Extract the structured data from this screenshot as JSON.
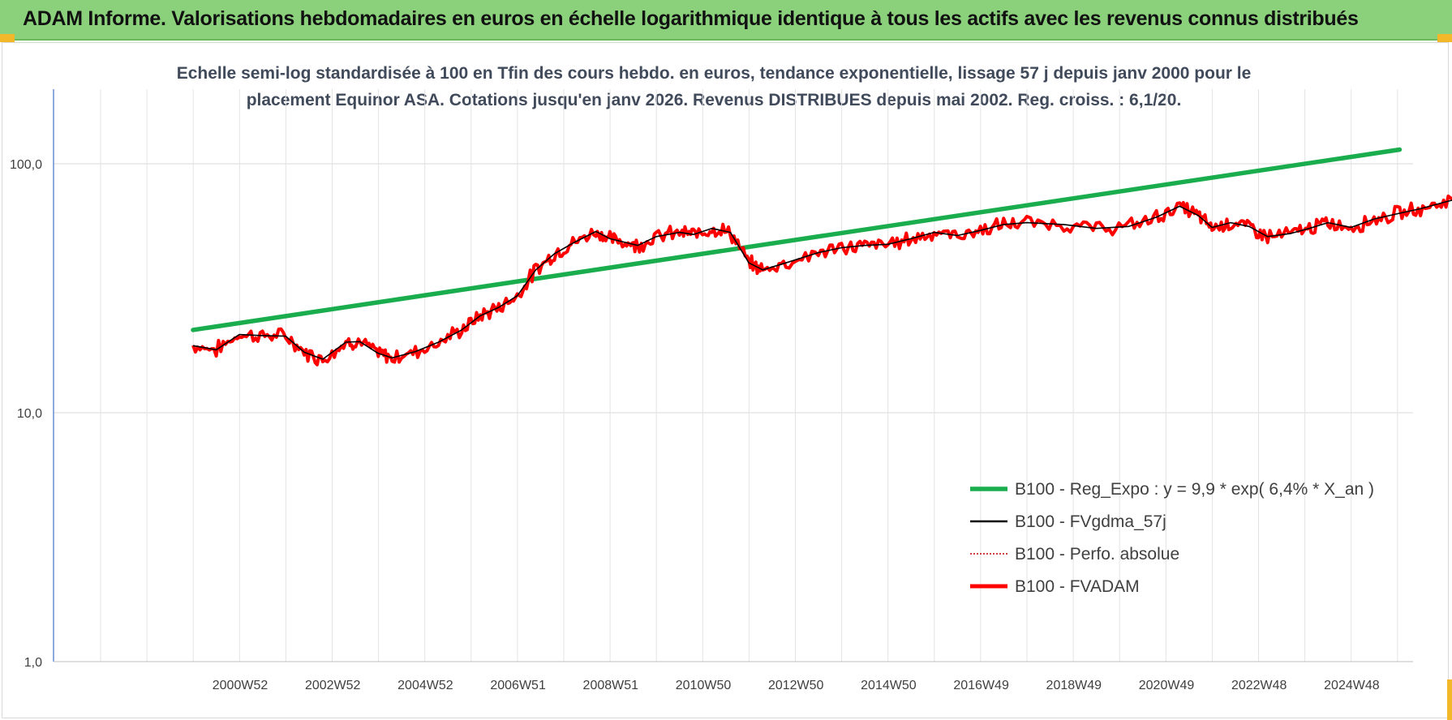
{
  "banner": {
    "title": "ADAM Informe. Valorisations hebdomadaires en euros en échelle logarithmique identique à tous les actifs avec les revenus connus distribués"
  },
  "colors": {
    "banner_bg": "#8bd17c",
    "reg_expo": "#1aad4e",
    "fvgdma": "#000000",
    "perfo": "#c00000",
    "fvadam": "#ff0000"
  },
  "chart_data": {
    "type": "line",
    "title_lines": [
      "Echelle semi-log standardisée à 100 en Tfin des cours hebdo. en euros, tendance exponentielle, lissage 57 j depuis janv 2000 pour le",
      "placement Equinor ASA. Cotations jusqu'en janv 2026. Revenus DISTRIBUES depuis mai 2002. Reg. croiss. : 6,1/20."
    ],
    "y_scale": "log",
    "ylim": [
      1,
      200
    ],
    "y_ticks": [
      {
        "value": 1,
        "label": "1,0"
      },
      {
        "value": 10,
        "label": "10,0"
      },
      {
        "value": 100,
        "label": "100,0"
      }
    ],
    "x_ticks": [
      "2000W52",
      "2002W52",
      "2004W52",
      "2006W51",
      "2008W51",
      "2010W50",
      "2012W50",
      "2014W50",
      "2016W49",
      "2018W49",
      "2020W49",
      "2022W48",
      "2024W48"
    ],
    "legend_position": "bottom-right",
    "grid": true,
    "series": [
      {
        "name": "B100 - Reg_Expo : y = 9,9 * exp( 6,4% *  X_an )",
        "style": "solid-thick",
        "points": [
          [
            2000.0,
            21.5
          ],
          [
            2026.05,
            114
          ]
        ]
      },
      {
        "name": "B100 - FVgdma_57j",
        "style": "solid-thin",
        "points": [
          [
            2000.0,
            18.6
          ],
          [
            2000.5,
            17.9
          ],
          [
            2001.0,
            20.6
          ],
          [
            2001.5,
            20.4
          ],
          [
            2002.0,
            20.3
          ],
          [
            2002.4,
            17.5
          ],
          [
            2002.8,
            16.4
          ],
          [
            2003.3,
            19.2
          ],
          [
            2003.6,
            19.3
          ],
          [
            2004.0,
            17.3
          ],
          [
            2004.3,
            16.6
          ],
          [
            2004.8,
            17.6
          ],
          [
            2005.3,
            19.2
          ],
          [
            2005.8,
            21.5
          ],
          [
            2006.2,
            24.5
          ],
          [
            2006.6,
            26.5
          ],
          [
            2007.0,
            29.5
          ],
          [
            2007.4,
            37.5
          ],
          [
            2007.8,
            43.5
          ],
          [
            2008.2,
            48.0
          ],
          [
            2008.7,
            53.5
          ],
          [
            2009.0,
            50.0
          ],
          [
            2009.3,
            48.5
          ],
          [
            2009.6,
            47.0
          ],
          [
            2010.0,
            51.0
          ],
          [
            2010.5,
            53.0
          ],
          [
            2010.8,
            52.0
          ],
          [
            2011.2,
            55.0
          ],
          [
            2011.6,
            53.0
          ],
          [
            2012.0,
            40.0
          ],
          [
            2012.3,
            37.5
          ],
          [
            2012.8,
            40.0
          ],
          [
            2013.5,
            44.0
          ],
          [
            2014.0,
            46.0
          ],
          [
            2014.5,
            47.0
          ],
          [
            2015.0,
            47.5
          ],
          [
            2015.5,
            50.0
          ],
          [
            2016.0,
            53.0
          ],
          [
            2016.5,
            51.5
          ],
          [
            2017.0,
            54.0
          ],
          [
            2017.5,
            57.0
          ],
          [
            2018.0,
            58.0
          ],
          [
            2018.8,
            57.0
          ],
          [
            2019.5,
            55.0
          ],
          [
            2020.2,
            56.0
          ],
          [
            2020.8,
            61.0
          ],
          [
            2021.3,
            67.5
          ],
          [
            2021.7,
            62.0
          ],
          [
            2022.0,
            55.5
          ],
          [
            2022.4,
            58.0
          ],
          [
            2022.8,
            56.0
          ],
          [
            2023.2,
            51.0
          ],
          [
            2023.7,
            52.5
          ],
          [
            2024.1,
            55.0
          ],
          [
            2024.5,
            58.0
          ],
          [
            2025.0,
            55.5
          ],
          [
            2025.5,
            60.0
          ],
          [
            2026.0,
            63.0
          ],
          [
            2026.5,
            66.0
          ],
          [
            2027.0,
            70.0
          ],
          [
            2027.5,
            74.0
          ],
          [
            2028.0,
            76.0
          ],
          [
            2028.4,
            72.0
          ],
          [
            2028.8,
            70.0
          ],
          [
            2029.2,
            68.0
          ],
          [
            2029.6,
            65.5
          ],
          [
            2030.0,
            66.0
          ],
          [
            2030.3,
            58.0
          ],
          [
            2030.7,
            58.0
          ],
          [
            2031.2,
            60.0
          ],
          [
            2031.6,
            66.0
          ],
          [
            2032.0,
            72.0
          ],
          [
            2032.4,
            85.0
          ],
          [
            2032.8,
            102.0
          ],
          [
            2033.2,
            108.0
          ],
          [
            2033.5,
            109.0
          ],
          [
            2033.9,
            102.0
          ],
          [
            2034.3,
            97.0
          ],
          [
            2034.7,
            101.0
          ],
          [
            2035.0,
            104.0
          ],
          [
            2035.4,
            103.0
          ],
          [
            2035.8,
            99.5
          ],
          [
            2036.2,
            101.0
          ],
          [
            2036.6,
            99.0
          ],
          [
            2037.0,
            97.0
          ],
          [
            2037.4,
            99.5
          ],
          [
            2037.8,
            98.0
          ],
          [
            2038.2,
            99.5
          ]
        ]
      },
      {
        "name": "B100 - Perfo. absolue",
        "style": "dotted",
        "points": []
      },
      {
        "name": "B100 - FVADAM",
        "style": "solid-thick",
        "points": []
      }
    ],
    "x_index": "years-since-2000"
  }
}
